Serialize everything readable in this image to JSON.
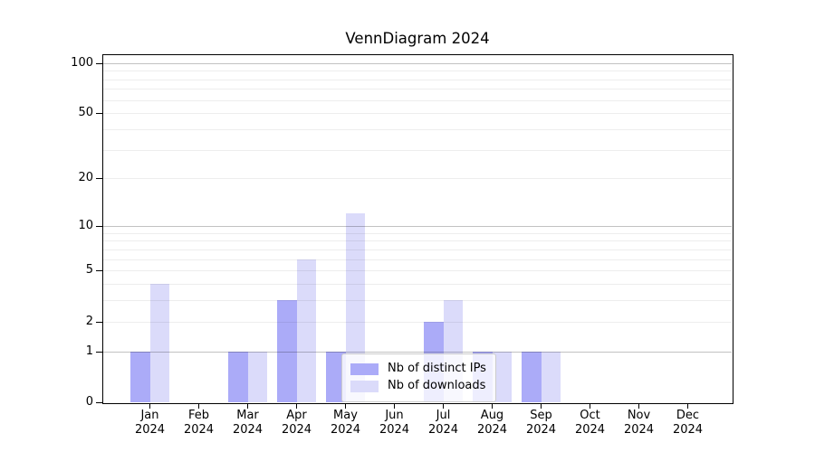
{
  "figure": {
    "title": "VennDiagram 2024",
    "background": "#ffffff"
  },
  "chart_data": {
    "type": "bar",
    "title": "VennDiagram 2024",
    "categories": [
      "Jan 2024",
      "Feb 2024",
      "Mar 2024",
      "Apr 2024",
      "May 2024",
      "Jun 2024",
      "Jul 2024",
      "Aug 2024",
      "Sep 2024",
      "Oct 2024",
      "Nov 2024",
      "Dec 2024"
    ],
    "series": [
      {
        "name": "Nb of distinct IPs",
        "color": "#ababf8",
        "values": [
          1,
          0,
          1,
          3,
          1,
          0,
          2,
          1,
          1,
          0,
          0,
          0
        ]
      },
      {
        "name": "Nb of downloads",
        "color": "#dbdbfa",
        "values": [
          4,
          0,
          1,
          6,
          12,
          0,
          3,
          1,
          1,
          0,
          0,
          0
        ]
      }
    ],
    "yscale": "log1p",
    "ylim": [
      0,
      113
    ],
    "y_ticks": [
      {
        "label": "0",
        "value": 0
      },
      {
        "label": "1",
        "value": 1
      },
      {
        "label": "2",
        "value": 2
      },
      {
        "label": "5",
        "value": 5
      },
      {
        "label": "10",
        "value": 10
      },
      {
        "label": "20",
        "value": 20
      },
      {
        "label": "50",
        "value": 50
      },
      {
        "label": "100",
        "value": 100
      }
    ],
    "grid": true,
    "grid_emphasis_values": [
      1,
      10,
      100
    ],
    "grid_minor_values": [
      2,
      3,
      4,
      5,
      6,
      7,
      8,
      9,
      20,
      30,
      40,
      50,
      60,
      70,
      80,
      90
    ],
    "legend_position": "lower center",
    "colors": {
      "axis": "#000000",
      "grid_minor": "rgba(0,0,0,0.07)",
      "grid_emphasis": "rgba(0,0,0,0.24)",
      "legend_border": "#cccccc",
      "legend_bg": "rgba(255,255,255,0.8)",
      "text": "#000000"
    }
  }
}
